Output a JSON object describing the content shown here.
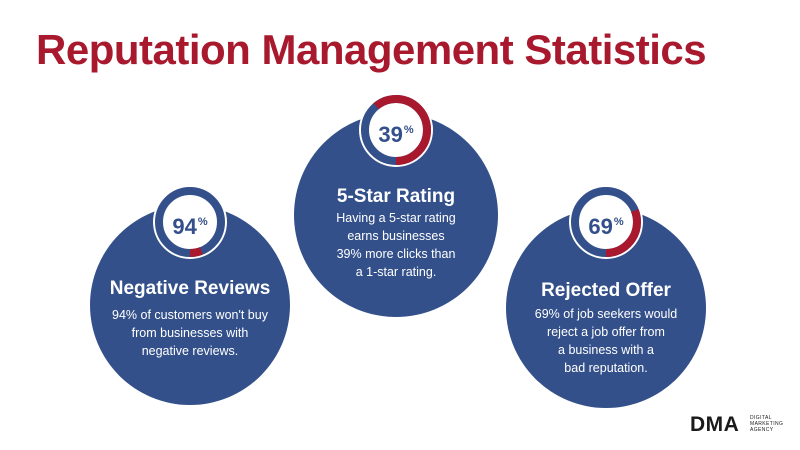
{
  "title": "Reputation Management Statistics",
  "colors": {
    "primary": "#a8192e",
    "card": "#33508a",
    "ring_track": "#33508a",
    "ring_fill": "#a8192e"
  },
  "stats": [
    {
      "value": 94,
      "value_text": "94",
      "unit": "%",
      "heading": "Negative Reviews",
      "body": [
        "94% of customers won't buy",
        "from businesses with",
        "negative reviews."
      ]
    },
    {
      "value": 39,
      "value_text": "39",
      "unit": "%",
      "heading": "5-Star Rating",
      "body": [
        "Having a 5-star rating",
        "earns businesses",
        "39% more clicks than",
        "a 1-star rating."
      ]
    },
    {
      "value": 69,
      "value_text": "69",
      "unit": "%",
      "heading": "Rejected Offer",
      "body": [
        "69% of job seekers would",
        "reject a job offer from",
        "a business with a",
        "bad reputation."
      ]
    }
  ],
  "logo": {
    "mark": "DMA",
    "subtitle": [
      "DIGITAL",
      "MARKETING",
      "AGENCY"
    ]
  }
}
